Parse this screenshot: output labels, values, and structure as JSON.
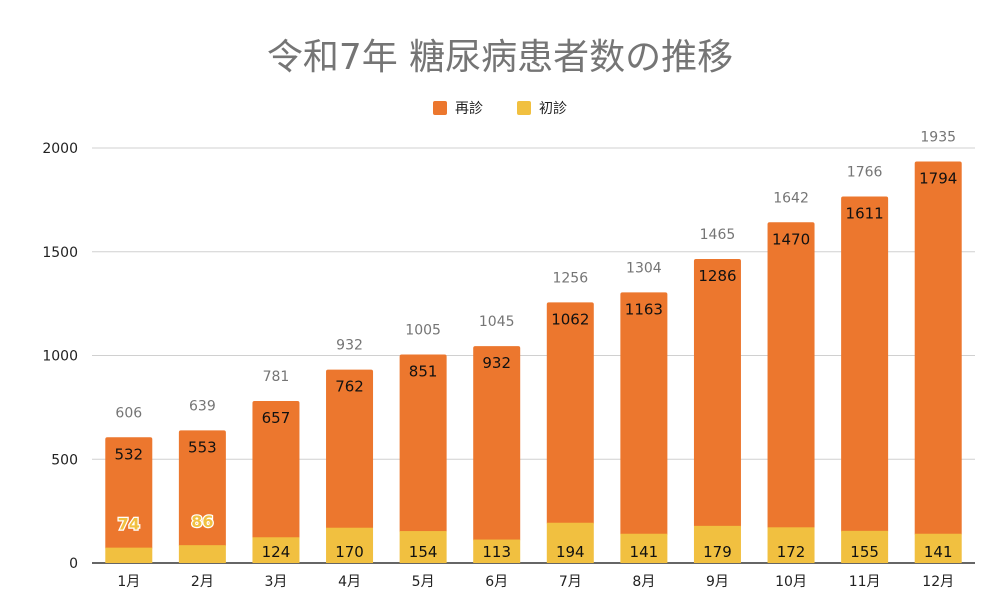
{
  "chart_data": {
    "type": "bar",
    "stacked": true,
    "title": "令和7年 糖尿病患者数の推移",
    "xlabel": "",
    "ylabel": "",
    "ylim": [
      0,
      2000
    ],
    "yticks": [
      0,
      500,
      1000,
      1500,
      2000
    ],
    "grid": true,
    "legend_position": "top",
    "categories": [
      "1月",
      "2月",
      "3月",
      "4月",
      "5月",
      "6月",
      "7月",
      "8月",
      "9月",
      "10月",
      "11月",
      "12月"
    ],
    "series": [
      {
        "name": "初診",
        "color": "#F1C040",
        "values": [
          74,
          86,
          124,
          170,
          154,
          113,
          194,
          141,
          179,
          172,
          155,
          141
        ]
      },
      {
        "name": "再診",
        "color": "#EC772E",
        "values": [
          532,
          553,
          657,
          762,
          851,
          932,
          1062,
          1163,
          1286,
          1470,
          1611,
          1794
        ]
      }
    ],
    "totals": [
      606,
      639,
      781,
      932,
      1005,
      1045,
      1256,
      1304,
      1465,
      1642,
      1766,
      1935
    ]
  }
}
